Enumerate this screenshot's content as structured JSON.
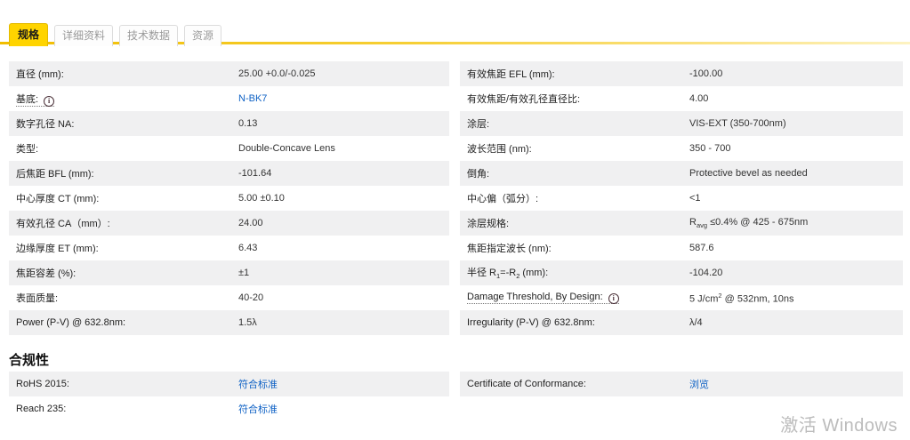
{
  "tabs": {
    "items": [
      {
        "label": "规格",
        "active": true
      },
      {
        "label": "详细资料",
        "active": false
      },
      {
        "label": "技术数据",
        "active": false
      },
      {
        "label": "资源",
        "active": false
      }
    ]
  },
  "colors": {
    "accent_yellow": "#ffd400",
    "row_stripe_gray": "#f0f0f1",
    "link_blue": "#0f62c5",
    "watermark_gray": "#bcbcbc"
  },
  "spec_table": {
    "left_rows": [
      {
        "label": "直径 (mm):",
        "value": "25.00 +0.0/-0.025"
      },
      {
        "label": "基底:",
        "info": true,
        "tooltip": true,
        "value": "N-BK7",
        "link": true
      },
      {
        "label": "数字孔径 NA:",
        "value": "0.13"
      },
      {
        "label": "类型:",
        "value": "Double-Concave Lens"
      },
      {
        "label": "后焦距 BFL (mm):",
        "value": "-101.64"
      },
      {
        "label": "中心厚度 CT (mm):",
        "value": "5.00 ±0.10"
      },
      {
        "label": "有效孔径 CA（mm）:",
        "value": "24.00"
      },
      {
        "label": "边缘厚度 ET (mm):",
        "value": "6.43"
      },
      {
        "label": "焦距容差 (%):",
        "value": "±1"
      },
      {
        "label": "表面质量:",
        "value": "40-20"
      },
      {
        "label": "Power (P-V) @ 632.8nm:",
        "value": "1.5λ"
      }
    ],
    "right_rows": [
      {
        "label": "有效焦距 EFL (mm):",
        "value": "-100.00"
      },
      {
        "label": "有效焦距/有效孔径直径比:",
        "value": "4.00"
      },
      {
        "label": "涂层:",
        "value": "VIS-EXT (350-700nm)"
      },
      {
        "label": "波长范围 (nm):",
        "value": "350 - 700"
      },
      {
        "label": "倒角:",
        "value": "Protective bevel as needed"
      },
      {
        "label": "中心偏（弧分）:",
        "value": "&lt;1"
      },
      {
        "label": "涂层规格:",
        "value": "R<sub>avg</sub> ≤0.4% @ 425 - 675nm"
      },
      {
        "label": "焦距指定波长 (nm):",
        "value": "587.6"
      },
      {
        "label": "半径 R<sub>1</sub>=-R<sub>2</sub> (mm):",
        "value": "-104.20"
      },
      {
        "label": "Damage Threshold, By Design:",
        "info": true,
        "tooltip": true,
        "value": "5 J/cm<sup>2</sup> @ 532nm, 10ns"
      },
      {
        "label": "Irregularity (P-V) @ 632.8nm:",
        "value": "λ/4"
      }
    ]
  },
  "compliance": {
    "heading": "合规性",
    "left_rows": [
      {
        "label": "RoHS 2015:",
        "value": "符合标准",
        "link": true
      },
      {
        "label": "Reach 235:",
        "value": "符合标准",
        "link": true
      }
    ],
    "right_rows": [
      {
        "label": "Certificate of Conformance:",
        "value": "浏览",
        "link": true
      },
      {
        "label": "",
        "value": "",
        "empty": true
      }
    ]
  },
  "watermark": {
    "text": "激活 Windows"
  }
}
